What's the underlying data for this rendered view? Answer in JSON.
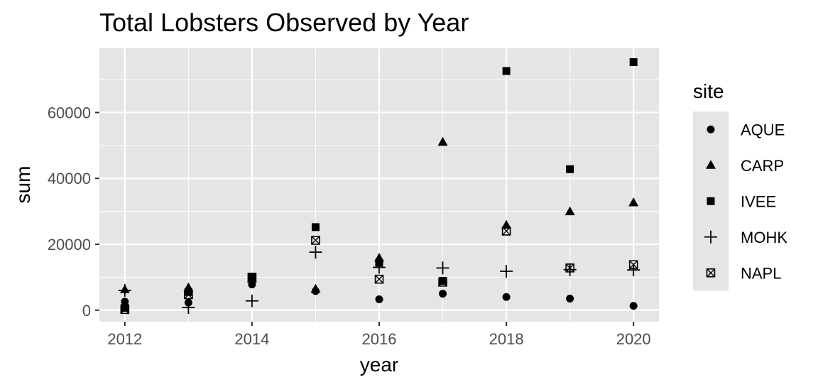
{
  "chart_data": {
    "type": "scatter",
    "title": "Total Lobsters Observed by Year",
    "xlabel": "year",
    "ylabel": "sum",
    "xlim": [
      2011.6,
      2020.4
    ],
    "ylim": [
      -3500,
      79500
    ],
    "x_ticks": [
      2012,
      2014,
      2016,
      2018,
      2020
    ],
    "x_tick_labels": [
      "2012",
      "2014",
      "2016",
      "2018",
      "2020"
    ],
    "y_ticks": [
      0,
      20000,
      40000,
      60000
    ],
    "y_tick_labels": [
      "0",
      "20000",
      "40000",
      "60000"
    ],
    "x_minor_ticks": [
      2013,
      2015,
      2017,
      2019
    ],
    "y_minor_ticks": [
      10000,
      30000,
      50000,
      70000
    ],
    "grid": true,
    "panel_background": "#e5e5e5",
    "grid_color": "#ffffff",
    "legend": {
      "title": "site",
      "placement": "right",
      "background": "#e5e5e5"
    },
    "series": [
      {
        "name": "AQUE",
        "shape": "circle",
        "x": [
          2012,
          2013,
          2014,
          2015,
          2016,
          2017,
          2018,
          2019,
          2020
        ],
        "y": [
          2600,
          2300,
          7800,
          5800,
          3300,
          5000,
          4000,
          3500,
          1300
        ]
      },
      {
        "name": "CARP",
        "shape": "triangle",
        "x": [
          2012,
          2013,
          2014,
          2015,
          2016,
          2017,
          2018,
          2019,
          2020
        ],
        "y": [
          6200,
          6800,
          9500,
          6400,
          15800,
          51000,
          25800,
          29900,
          32600
        ]
      },
      {
        "name": "IVEE",
        "shape": "square",
        "x": [
          2012,
          2013,
          2014,
          2015,
          2016,
          2017,
          2018,
          2019,
          2020
        ],
        "y": [
          700,
          5500,
          10100,
          25200,
          14400,
          8900,
          72600,
          42800,
          75300
        ]
      },
      {
        "name": "MOHK",
        "shape": "plus",
        "x": [
          2012,
          2013,
          2014,
          2015,
          2016,
          2017,
          2018,
          2019,
          2020
        ],
        "y": [
          6000,
          800,
          2800,
          17600,
          13000,
          12800,
          11800,
          12300,
          12200
        ]
      },
      {
        "name": "NAPL",
        "shape": "boxcross",
        "x": [
          2012,
          2013,
          2014,
          2015,
          2016,
          2017,
          2018,
          2019,
          2020
        ],
        "y": [
          200,
          4700,
          10000,
          21200,
          9400,
          8500,
          24000,
          12800,
          13800
        ]
      }
    ]
  }
}
